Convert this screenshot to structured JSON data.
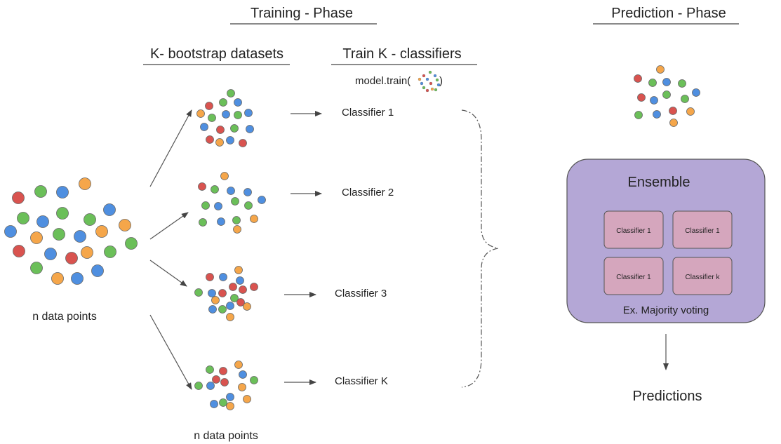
{
  "training_phase": {
    "title": "Training - Phase"
  },
  "prediction_phase": {
    "title": "Prediction - Phase"
  },
  "bootstrap": {
    "title": "K- bootstrap datasets"
  },
  "train": {
    "title": "Train K - classifiers",
    "call": "model.train(",
    "call_close": ")"
  },
  "source": {
    "label": "n data points"
  },
  "bottom": {
    "label": "n data points"
  },
  "classifiers": {
    "c1": "Classifier 1",
    "c2": "Classifier 2",
    "c3": "Classifier 3",
    "ck": "Classifier K"
  },
  "ensemble": {
    "title": "Ensemble",
    "method": "Ex. Majority voting",
    "boxes": [
      "Classifier 1",
      "Classifier 1",
      "Classifier 1",
      "Classifier k"
    ]
  },
  "output": {
    "label": "Predictions"
  },
  "colors": {
    "red": "#d9534f",
    "green": "#6bbf59",
    "blue": "#4f8fe0",
    "orange": "#f5a64a",
    "ensemble_fill": "#b4a7d6",
    "ensemble_stroke": "#555555",
    "classifier_fill": "#d5a6bd",
    "line": "#555555"
  }
}
